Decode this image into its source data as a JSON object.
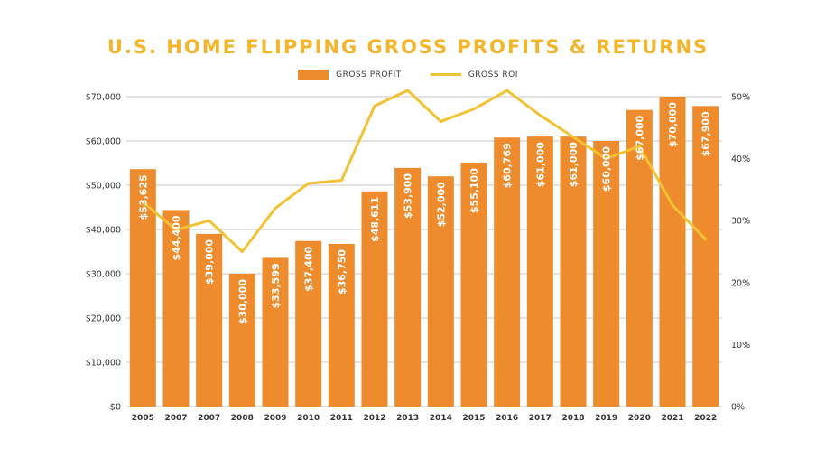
{
  "chart_data": {
    "type": "bar",
    "title": "U.S. HOME FLIPPING GROSS PROFITS & RETURNS",
    "categories": [
      "2005",
      "2007",
      "2007",
      "2008",
      "2009",
      "2010",
      "2011",
      "2012",
      "2013",
      "2014",
      "2015",
      "2016",
      "2017",
      "2018",
      "2019",
      "2020",
      "2021",
      "2022"
    ],
    "series": [
      {
        "name": "GROSS PROFIT",
        "type": "bar",
        "axis": "left",
        "values": [
          53625,
          44400,
          39000,
          30000,
          33599,
          37400,
          36750,
          48611,
          53900,
          52000,
          55100,
          60769,
          61000,
          61000,
          60000,
          67000,
          70000,
          67900
        ],
        "data_labels": [
          "$53,625",
          "$44,400",
          "$39,000",
          "$30,000",
          "$33,599",
          "$37,400",
          "$36,750",
          "$48,611",
          "$53,900",
          "$52,000",
          "$55,100",
          "$60,769",
          "$61,000",
          "$61,000",
          "$60,000",
          "$67,000",
          "$70,000",
          "$67,900"
        ]
      },
      {
        "name": "GROSS ROI",
        "type": "line",
        "axis": "right",
        "values": [
          33,
          28.5,
          30,
          25,
          32,
          36,
          36.5,
          48.5,
          51,
          46,
          48,
          51,
          47,
          43.5,
          40,
          42,
          32.5,
          27
        ]
      }
    ],
    "ylim": [
      0,
      70000
    ],
    "y2lim": [
      0,
      50
    ],
    "yticks": [
      "$0",
      "$10,000",
      "$20,000",
      "$30,000",
      "$40,000",
      "$50,000",
      "$60,000",
      "$70,000"
    ],
    "y2ticks": [
      "0%",
      "10%",
      "20%",
      "30%",
      "40%",
      "50%"
    ],
    "grid": true,
    "legend_position": "top-center",
    "colors": {
      "bar": "#ee8b2d",
      "line": "#f3c232",
      "title": "#f3b62b",
      "grid": "#c8c8c8"
    }
  }
}
